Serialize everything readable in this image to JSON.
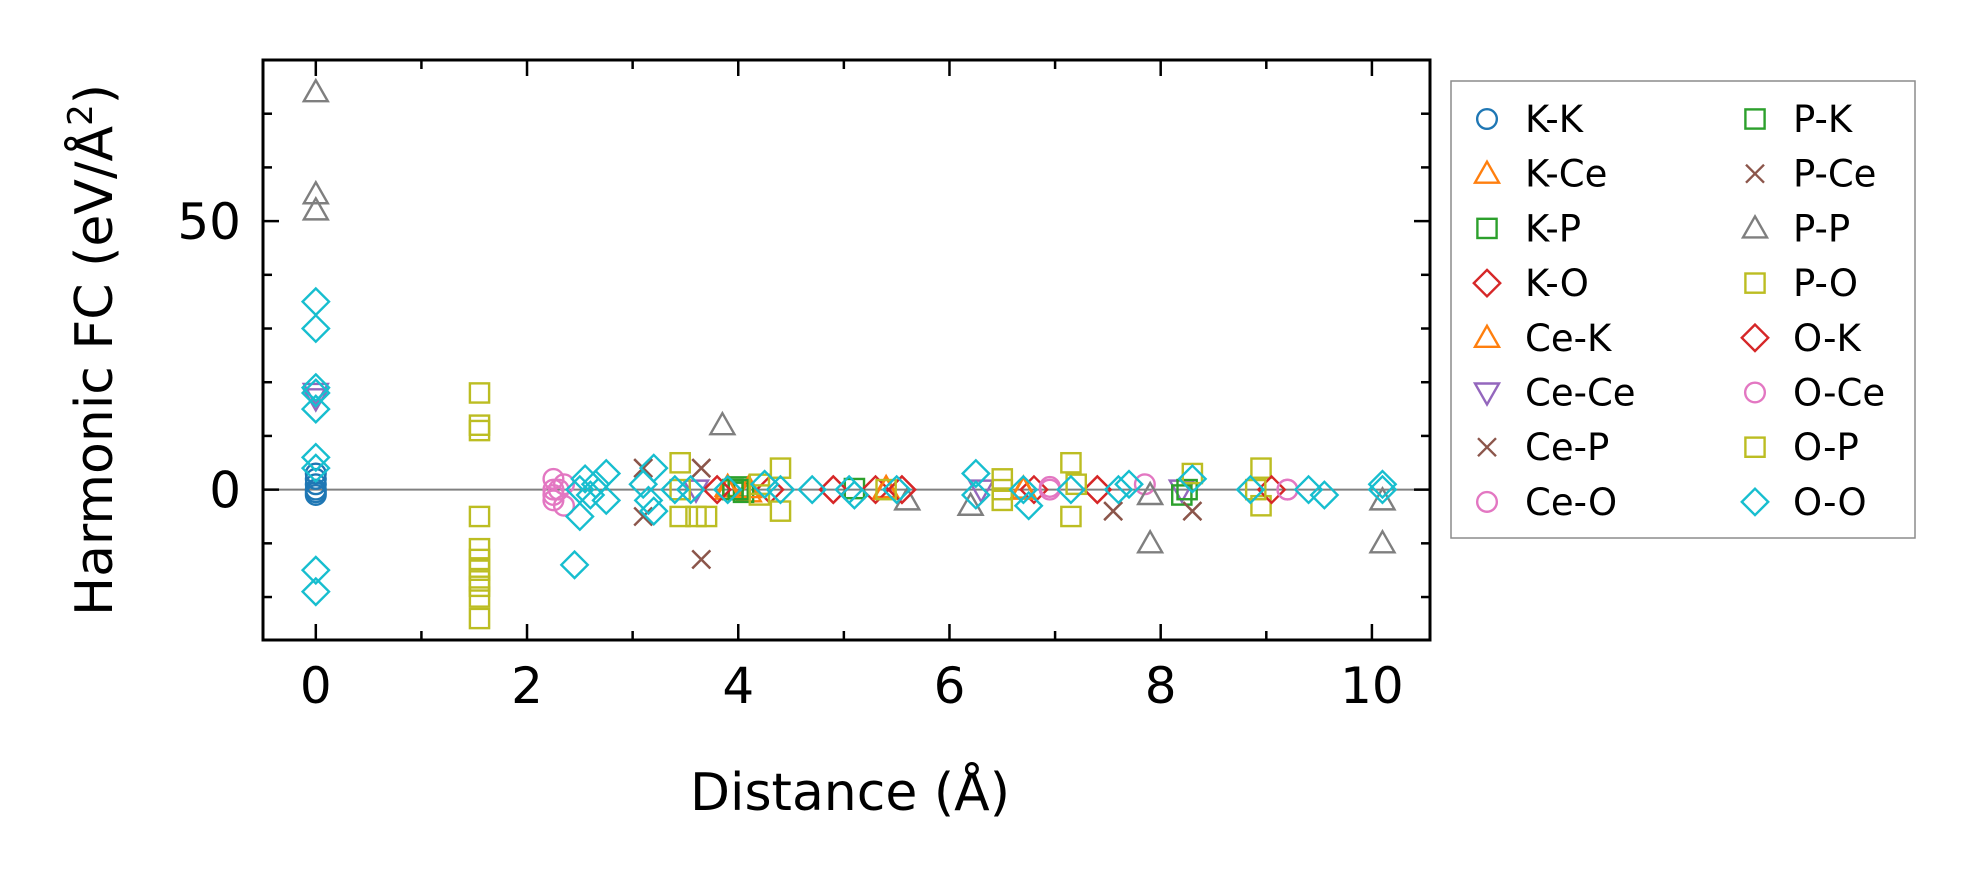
{
  "chart_data": {
    "type": "scatter",
    "title": "",
    "xlabel": "Distance (Å)",
    "ylabel": "Harmonic FC (eV/Å²)",
    "ylabel_main": "Harmonic FC (eV/Å",
    "ylabel_sup": "2",
    "ylabel_close": ")",
    "xlim": [
      -0.5,
      10.55
    ],
    "ylim": [
      -28,
      80
    ],
    "xticks": [
      0,
      2,
      4,
      6,
      8,
      10
    ],
    "xtick_labels": [
      "0",
      "2",
      "4",
      "6",
      "8",
      "10"
    ],
    "yticks": [
      0,
      50
    ],
    "ytick_labels": [
      "0",
      "50"
    ],
    "zero_line": true,
    "legend_position": "outside-right",
    "series": [
      {
        "name": "K-K",
        "marker": "circle",
        "color": "#1f77b4",
        "points": [
          [
            0,
            0
          ],
          [
            0,
            1
          ],
          [
            0,
            -1
          ],
          [
            0,
            2
          ],
          [
            0,
            -0.5
          ],
          [
            0,
            3
          ]
        ]
      },
      {
        "name": "K-Ce",
        "marker": "triangle-up",
        "color": "#ff7f0e",
        "points": [
          [
            3.9,
            0.5
          ],
          [
            4.1,
            -0.5
          ],
          [
            5.4,
            0.3
          ],
          [
            6.7,
            0.2
          ]
        ]
      },
      {
        "name": "K-P",
        "marker": "square",
        "color": "#2ca02c",
        "points": [
          [
            3.95,
            0
          ],
          [
            4.0,
            0.5
          ],
          [
            4.05,
            -0.5
          ],
          [
            5.1,
            0.2
          ]
        ]
      },
      {
        "name": "K-O",
        "marker": "diamond",
        "color": "#d62728",
        "points": [
          [
            3.8,
            0
          ],
          [
            4.3,
            0
          ],
          [
            4.9,
            0
          ],
          [
            5.3,
            0
          ],
          [
            5.55,
            0
          ],
          [
            6.8,
            0
          ],
          [
            7.4,
            0
          ]
        ]
      },
      {
        "name": "Ce-K",
        "marker": "triangle-up",
        "color": "#ff7f0e",
        "points": [
          [
            3.9,
            0
          ],
          [
            4.1,
            0.3
          ],
          [
            5.4,
            0
          ],
          [
            6.7,
            0
          ]
        ]
      },
      {
        "name": "Ce-Ce",
        "marker": "triangle-down",
        "color": "#9467bd",
        "points": [
          [
            0,
            18
          ],
          [
            0,
            17
          ],
          [
            3.6,
            0
          ],
          [
            6.3,
            0
          ],
          [
            8.2,
            0
          ]
        ]
      },
      {
        "name": "Ce-P",
        "marker": "x",
        "color": "#8c564b",
        "points": [
          [
            3.1,
            4
          ],
          [
            3.1,
            -5
          ],
          [
            3.65,
            4
          ],
          [
            3.65,
            -13
          ],
          [
            7.55,
            -4
          ],
          [
            8.3,
            -4
          ]
        ]
      },
      {
        "name": "Ce-O",
        "marker": "circle",
        "color": "#e377c2",
        "points": [
          [
            2.25,
            2
          ],
          [
            2.25,
            -1
          ],
          [
            2.25,
            -2
          ],
          [
            2.3,
            0
          ],
          [
            2.35,
            1
          ],
          [
            2.35,
            -3
          ],
          [
            6.95,
            0
          ],
          [
            7.85,
            1
          ],
          [
            9.2,
            0
          ]
        ]
      },
      {
        "name": "P-K",
        "marker": "square",
        "color": "#2ca02c",
        "points": [
          [
            3.95,
            0
          ],
          [
            4.0,
            0
          ],
          [
            8.2,
            -1
          ],
          [
            8.25,
            0
          ]
        ]
      },
      {
        "name": "P-Ce",
        "marker": "x",
        "color": "#8c564b",
        "points": [
          [
            3.1,
            4
          ],
          [
            3.65,
            4
          ],
          [
            3.65,
            -13
          ],
          [
            7.55,
            -4
          ],
          [
            8.3,
            -4
          ]
        ]
      },
      {
        "name": "P-P",
        "marker": "triangle-up",
        "color": "#7f7f7f",
        "points": [
          [
            0,
            74
          ],
          [
            0,
            55
          ],
          [
            0,
            52
          ],
          [
            3.85,
            12
          ],
          [
            5.6,
            -2
          ],
          [
            6.2,
            -3
          ],
          [
            7.9,
            -10
          ],
          [
            7.9,
            -1
          ],
          [
            10.1,
            -10
          ],
          [
            10.1,
            -2
          ]
        ]
      },
      {
        "name": "P-O",
        "marker": "square",
        "color": "#bcbd22",
        "points": [
          [
            1.55,
            18
          ],
          [
            1.55,
            12
          ],
          [
            1.55,
            11
          ],
          [
            1.55,
            -5
          ],
          [
            1.55,
            -11
          ],
          [
            1.55,
            -13
          ],
          [
            1.55,
            -15
          ],
          [
            1.55,
            -17
          ],
          [
            1.55,
            -18
          ],
          [
            1.55,
            -20
          ],
          [
            1.55,
            -24
          ],
          [
            3.45,
            5
          ],
          [
            3.45,
            -5
          ],
          [
            3.6,
            -5
          ],
          [
            3.7,
            -5
          ],
          [
            4.4,
            4
          ],
          [
            4.4,
            -4
          ],
          [
            6.5,
            2
          ],
          [
            6.5,
            -2
          ],
          [
            7.15,
            5
          ],
          [
            7.15,
            -5
          ],
          [
            8.3,
            3
          ],
          [
            8.95,
            4
          ],
          [
            8.95,
            -3
          ]
        ]
      },
      {
        "name": "O-K",
        "marker": "diamond",
        "color": "#d62728",
        "points": [
          [
            3.8,
            0
          ],
          [
            4.9,
            0
          ],
          [
            5.55,
            0
          ],
          [
            7.4,
            0
          ],
          [
            9.05,
            0
          ]
        ]
      },
      {
        "name": "O-Ce",
        "marker": "circle",
        "color": "#e377c2",
        "points": [
          [
            2.25,
            0
          ],
          [
            6.95,
            0.5
          ],
          [
            9.2,
            0
          ]
        ]
      },
      {
        "name": "O-P",
        "marker": "square",
        "color": "#bcbd22",
        "points": [
          [
            3.45,
            0
          ],
          [
            4.2,
            1
          ],
          [
            4.2,
            -1
          ],
          [
            5.4,
            0
          ],
          [
            6.5,
            0
          ],
          [
            7.2,
            1
          ],
          [
            8.9,
            0
          ]
        ]
      },
      {
        "name": "O-O",
        "marker": "diamond",
        "color": "#17becf",
        "points": [
          [
            0,
            35
          ],
          [
            0,
            30
          ],
          [
            0,
            19
          ],
          [
            0,
            18
          ],
          [
            0,
            15
          ],
          [
            0,
            6
          ],
          [
            0,
            4
          ],
          [
            0,
            -15
          ],
          [
            0,
            -19
          ],
          [
            2.45,
            -14
          ],
          [
            2.5,
            -5
          ],
          [
            2.5,
            0
          ],
          [
            2.55,
            2
          ],
          [
            2.6,
            -1
          ],
          [
            2.65,
            1
          ],
          [
            2.75,
            3
          ],
          [
            2.75,
            -2
          ],
          [
            3.1,
            1
          ],
          [
            3.15,
            -2
          ],
          [
            3.2,
            4
          ],
          [
            3.2,
            -4
          ],
          [
            3.4,
            0
          ],
          [
            3.55,
            0
          ],
          [
            3.9,
            0
          ],
          [
            4.25,
            1
          ],
          [
            4.4,
            0
          ],
          [
            4.7,
            0
          ],
          [
            5.05,
            0
          ],
          [
            5.1,
            -1
          ],
          [
            5.5,
            0
          ],
          [
            6.25,
            3
          ],
          [
            6.25,
            -1
          ],
          [
            6.7,
            0
          ],
          [
            6.75,
            -3
          ],
          [
            7.15,
            0
          ],
          [
            7.6,
            0
          ],
          [
            7.7,
            1
          ],
          [
            8.3,
            2
          ],
          [
            8.85,
            0
          ],
          [
            9.4,
            0
          ],
          [
            9.55,
            -1
          ],
          [
            10.1,
            1
          ],
          [
            10.1,
            0
          ]
        ]
      }
    ]
  }
}
